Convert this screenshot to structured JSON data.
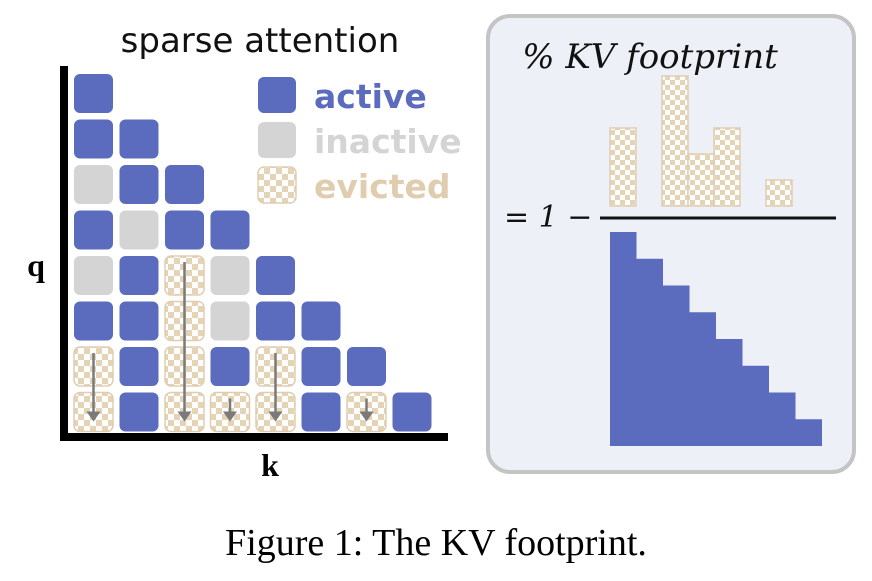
{
  "diagram": {
    "title": "sparse attention",
    "axis_q": "q",
    "axis_k": "k",
    "legend": [
      {
        "label": "active",
        "state": "active",
        "color": "#5b6bbd"
      },
      {
        "label": "inactive",
        "state": "inactive",
        "color": "#d4d4d4"
      },
      {
        "label": "evicted",
        "state": "evicted",
        "color": "#e5d3b6"
      }
    ],
    "grid": [
      [
        "active"
      ],
      [
        "active",
        "active"
      ],
      [
        "inactive",
        "active",
        "active"
      ],
      [
        "active",
        "inactive",
        "active",
        "active"
      ],
      [
        "inactive",
        "active",
        "evicted",
        "inactive",
        "active"
      ],
      [
        "active",
        "active",
        "evicted",
        "inactive",
        "active",
        "active"
      ],
      [
        "evicted",
        "active",
        "evicted",
        "active",
        "evicted",
        "active",
        "active"
      ],
      [
        "evicted",
        "active",
        "evicted",
        "evicted",
        "evicted",
        "active",
        "evicted",
        "active"
      ]
    ],
    "eviction_arrows": [
      0,
      2,
      3,
      4,
      6
    ]
  },
  "formula": {
    "title": "% KV footprint",
    "prefix": "= 1 −",
    "numerator_column_heights": [
      3,
      0,
      5,
      2,
      3,
      0,
      1
    ],
    "denominator_steps": 8
  },
  "caption": "Figure 1: The KV footprint."
}
